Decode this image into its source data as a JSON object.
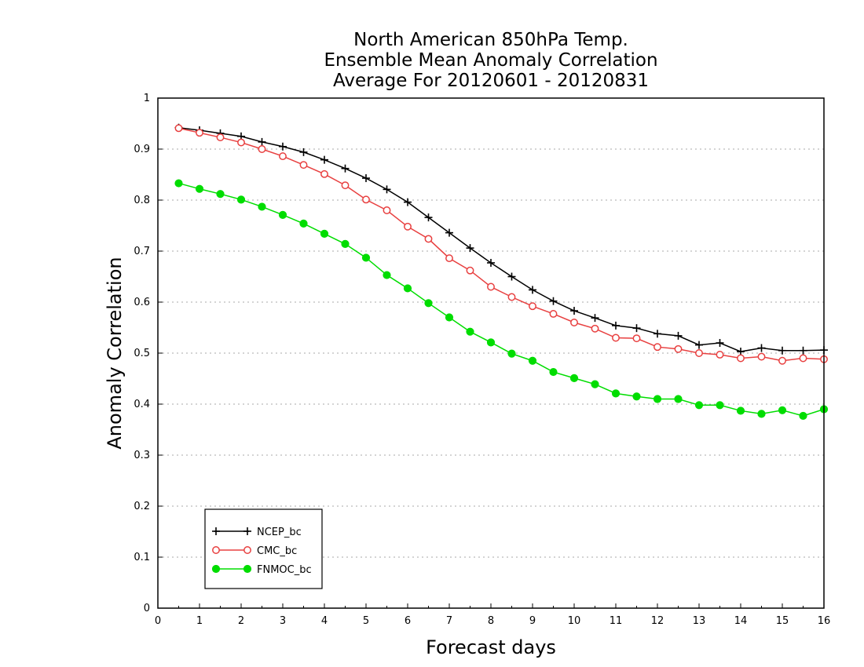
{
  "chart_data": {
    "type": "line",
    "title_lines": [
      "North American 850hPa Temp.",
      "Ensemble Mean Anomaly Correlation",
      "Average For 20120601 - 20120831"
    ],
    "xlabel": "Forecast days",
    "ylabel": "Anomaly Correlation",
    "xlim": [
      0,
      16
    ],
    "ylim": [
      0,
      1
    ],
    "x_ticks": [
      0,
      1,
      2,
      3,
      4,
      5,
      6,
      7,
      8,
      9,
      10,
      11,
      12,
      13,
      14,
      15,
      16
    ],
    "y_ticks": [
      0,
      0.1,
      0.2,
      0.3,
      0.4,
      0.5,
      0.6,
      0.7,
      0.8,
      0.9,
      1
    ],
    "y_tick_labels": [
      "0",
      "0.1",
      "0.2",
      "0.3",
      "0.4",
      "0.5",
      "0.6",
      "0.7",
      "0.8",
      "0.9",
      "1"
    ],
    "grid": "horizontal dotted",
    "legend_position": "bottom-left",
    "x": [
      0.5,
      1,
      1.5,
      2,
      2.5,
      3,
      3.5,
      4,
      4.5,
      5,
      5.5,
      6,
      6.5,
      7,
      7.5,
      8,
      8.5,
      9,
      9.5,
      10,
      10.5,
      11,
      11.5,
      12,
      12.5,
      13,
      13.5,
      14,
      14.5,
      15,
      15.5,
      16
    ],
    "series": [
      {
        "name": "NCEP_bc",
        "color": "#000000",
        "marker": "plus",
        "values": [
          0.942,
          0.937,
          0.931,
          0.925,
          0.914,
          0.905,
          0.894,
          0.879,
          0.862,
          0.843,
          0.821,
          0.796,
          0.766,
          0.736,
          0.706,
          0.677,
          0.65,
          0.624,
          0.602,
          0.583,
          0.569,
          0.554,
          0.549,
          0.538,
          0.534,
          0.516,
          0.52,
          0.503,
          0.51,
          0.505,
          0.505,
          0.506
        ]
      },
      {
        "name": "CMC_bc",
        "color": "#e84040",
        "marker": "open-circle",
        "values": [
          0.941,
          0.932,
          0.923,
          0.913,
          0.9,
          0.886,
          0.869,
          0.851,
          0.829,
          0.801,
          0.78,
          0.748,
          0.724,
          0.686,
          0.662,
          0.63,
          0.61,
          0.592,
          0.577,
          0.56,
          0.548,
          0.53,
          0.529,
          0.512,
          0.508,
          0.5,
          0.497,
          0.49,
          0.493,
          0.485,
          0.49,
          0.488
        ]
      },
      {
        "name": "FNMOC_bc",
        "color": "#00dd00",
        "marker": "filled-circle",
        "values": [
          0.833,
          0.822,
          0.812,
          0.801,
          0.787,
          0.771,
          0.754,
          0.734,
          0.714,
          0.687,
          0.653,
          0.627,
          0.598,
          0.57,
          0.542,
          0.521,
          0.499,
          0.485,
          0.463,
          0.451,
          0.439,
          0.421,
          0.415,
          0.41,
          0.41,
          0.398,
          0.398,
          0.387,
          0.381,
          0.388,
          0.377,
          0.39
        ]
      }
    ]
  }
}
